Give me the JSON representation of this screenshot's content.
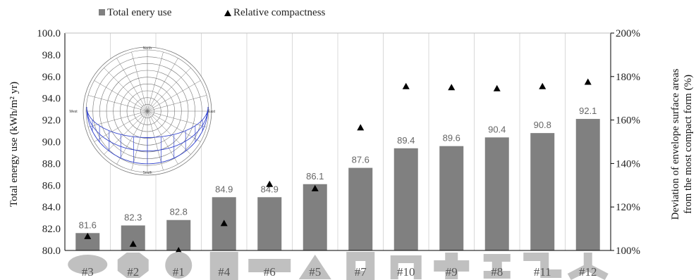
{
  "chart_data": {
    "type": "bar",
    "categories": [
      "#3",
      "#2",
      "#1",
      "#4",
      "#6",
      "#5",
      "#7",
      "#10",
      "#9",
      "#8",
      "#11",
      "#12"
    ],
    "shapes": [
      "ellipse",
      "octagon",
      "circle",
      "square",
      "flat-rectangle",
      "triangle",
      "hollow-square",
      "u-shape",
      "cross",
      "i-shape",
      "z-shape",
      "y-shape"
    ],
    "series": [
      {
        "name": "Total enery use",
        "type": "bar",
        "axis": "left",
        "color": "#808080",
        "values": [
          81.6,
          82.3,
          82.8,
          84.9,
          84.9,
          86.1,
          87.6,
          89.4,
          89.6,
          90.4,
          90.8,
          92.1
        ]
      },
      {
        "name": "Relative compactness",
        "type": "scatter",
        "marker": "triangle",
        "axis": "right",
        "color": "#000000",
        "values": [
          106.5,
          103,
          100,
          112.5,
          130.5,
          128.5,
          156.5,
          175.5,
          175,
          174.5,
          175.5,
          177.5
        ]
      }
    ],
    "data_labels": [
      "81.6",
      "82.3",
      "82.8",
      "84.9",
      "84.9",
      "86.1",
      "87.6",
      "89.4",
      "89.6",
      "90.4",
      "90.8",
      "92.1"
    ],
    "ylabel": "Total energy use (kWh/m² yr)",
    "ylim": [
      80,
      100
    ],
    "yticks": [
      "80.0",
      "82.0",
      "84.0",
      "86.0",
      "88.0",
      "90.0",
      "92.0",
      "94.0",
      "96.0",
      "98.0",
      "100.0"
    ],
    "y2label_line1": "Deviation of envelope surface areas",
    "y2label_line2": "from the most compact form (%)",
    "y2lim": [
      100,
      200
    ],
    "y2ticks": [
      "100%",
      "120%",
      "140%",
      "160%",
      "180%",
      "200%"
    ],
    "grid": "vertical",
    "legend_position": "top-left",
    "inset": {
      "type": "sun-path-diagram",
      "labels": {
        "north": "North",
        "south": "South",
        "east": "East",
        "west": "West"
      }
    }
  }
}
